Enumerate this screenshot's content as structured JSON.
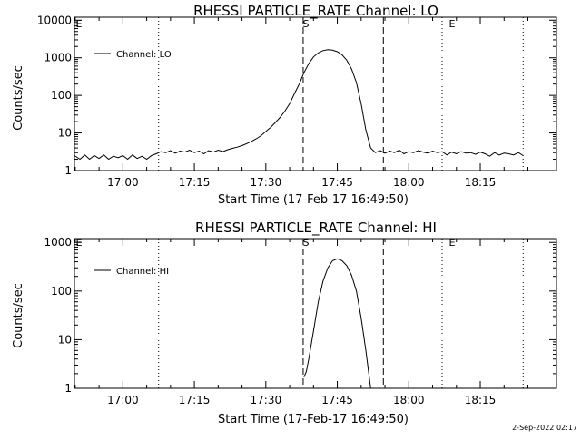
{
  "timestamp": "2-Sep-2022 02:17",
  "chart_data": [
    {
      "type": "line",
      "title": "RHESSI PARTICLE_RATE Channel: LO",
      "xlabel": "Start Time (17-Feb-17 16:49:50)",
      "ylabel": "Counts/sec",
      "yscale": "log",
      "xlim": [
        "16:49:50",
        "18:31:00"
      ],
      "ylim": [
        1,
        12000
      ],
      "x_ticks": [
        "17:00",
        "17:15",
        "17:30",
        "17:45",
        "18:00",
        "18:15"
      ],
      "y_ticks": [
        "1",
        "10",
        "100",
        "1000",
        "10000"
      ],
      "legend": "Channel: LO",
      "legend_position": "top-left",
      "markers": {
        "start_label": "S",
        "end_label": "E",
        "corner_label": "E"
      },
      "dotted_lines": [
        "17:07:30",
        "18:07:00",
        "18:24:00"
      ],
      "dashed_lines": [
        "17:37:50",
        "17:54:40"
      ],
      "series": [
        {
          "x": [
            "16:49:50",
            "16:51:00",
            "16:52:00",
            "16:53:00",
            "16:54:00",
            "16:55:00",
            "16:56:00",
            "16:57:00",
            "16:58:00",
            "16:59:00",
            "17:00:00",
            "17:01:00",
            "17:02:00",
            "17:03:00",
            "17:04:00",
            "17:05:00",
            "17:06:00",
            "17:07:00",
            "17:08:00",
            "17:09:00",
            "17:10:00",
            "17:11:00",
            "17:12:00",
            "17:13:00",
            "17:14:00",
            "17:15:00",
            "17:16:00",
            "17:17:00",
            "17:18:00",
            "17:19:00",
            "17:20:00",
            "17:21:00",
            "17:22:00",
            "17:23:00",
            "17:24:00",
            "17:25:00",
            "17:26:00",
            "17:27:00",
            "17:28:00",
            "17:29:00",
            "17:30:00",
            "17:31:00",
            "17:32:00",
            "17:33:00",
            "17:34:00",
            "17:35:00",
            "17:36:00",
            "17:37:00",
            "17:38:00",
            "17:39:00",
            "17:40:00",
            "17:41:00",
            "17:42:00",
            "17:43:00",
            "17:44:00",
            "17:45:00",
            "17:46:00",
            "17:47:00",
            "17:48:00",
            "17:49:00",
            "17:50:00",
            "17:51:00",
            "17:52:00",
            "17:53:00",
            "17:54:00",
            "17:55:00",
            "17:56:00",
            "17:57:00",
            "17:58:00",
            "17:59:00",
            "18:00:00",
            "18:01:00",
            "18:02:00",
            "18:03:00",
            "18:04:00",
            "18:05:00",
            "18:06:00",
            "18:07:00",
            "18:08:00",
            "18:09:00",
            "18:10:00",
            "18:11:00",
            "18:12:00",
            "18:13:00",
            "18:14:00",
            "18:15:00",
            "18:16:00",
            "18:17:00",
            "18:18:00",
            "18:19:00",
            "18:20:00",
            "18:21:00",
            "18:22:00",
            "18:23:00",
            "18:24:00"
          ],
          "y": [
            2.5,
            2,
            2.6,
            2,
            2.5,
            2.1,
            2.6,
            2,
            2.4,
            2.2,
            2.5,
            2,
            2.6,
            2.1,
            2.4,
            2,
            2.5,
            2.8,
            3.2,
            3,
            3.4,
            2.9,
            3.3,
            3.1,
            3.5,
            3,
            3.3,
            2.8,
            3.4,
            3.1,
            3.5,
            3.2,
            3.6,
            3.9,
            4.2,
            4.6,
            5.2,
            6,
            7,
            8.5,
            11,
            14,
            19,
            26,
            38,
            60,
            110,
            200,
            400,
            700,
            1050,
            1350,
            1550,
            1650,
            1600,
            1450,
            1200,
            850,
            500,
            220,
            60,
            12,
            4,
            3,
            3.4,
            2.9,
            3.3,
            3,
            3.5,
            2.8,
            3.2,
            3,
            3.4,
            3.1,
            2.9,
            3.3,
            3,
            3.2,
            2.6,
            3.1,
            2.8,
            3.2,
            2.9,
            3,
            2.7,
            3.1,
            2.8,
            2.4,
            3,
            2.6,
            2.9,
            2.8,
            2.6,
            3,
            2.5
          ]
        }
      ]
    },
    {
      "type": "line",
      "title": "RHESSI PARTICLE_RATE Channel: HI",
      "xlabel": "Start Time (17-Feb-17 16:49:50)",
      "ylabel": "Counts/sec",
      "yscale": "log",
      "xlim": [
        "16:49:50",
        "18:31:00"
      ],
      "ylim": [
        1,
        1200
      ],
      "x_ticks": [
        "17:00",
        "17:15",
        "17:30",
        "17:45",
        "18:00",
        "18:15"
      ],
      "y_ticks": [
        "1",
        "10",
        "100",
        "1000"
      ],
      "legend": "Channel: HI",
      "legend_position": "top-left",
      "markers": {
        "start_label": "S",
        "end_label": "E",
        "corner_label": "E"
      },
      "dotted_lines": [
        "17:07:30",
        "18:07:00",
        "18:24:00"
      ],
      "dashed_lines": [
        "17:37:50",
        "17:54:40"
      ],
      "series": [
        {
          "x": [
            "17:38:00",
            "17:38:30",
            "17:39:00",
            "17:40:00",
            "17:41:00",
            "17:42:00",
            "17:43:00",
            "17:44:00",
            "17:45:00",
            "17:46:00",
            "17:47:00",
            "17:48:00",
            "17:49:00",
            "17:50:00",
            "17:51:00",
            "17:52:00"
          ],
          "y": [
            1.7,
            2.2,
            4,
            15,
            60,
            160,
            300,
            420,
            460,
            420,
            330,
            210,
            100,
            28,
            6,
            1
          ]
        }
      ]
    }
  ]
}
